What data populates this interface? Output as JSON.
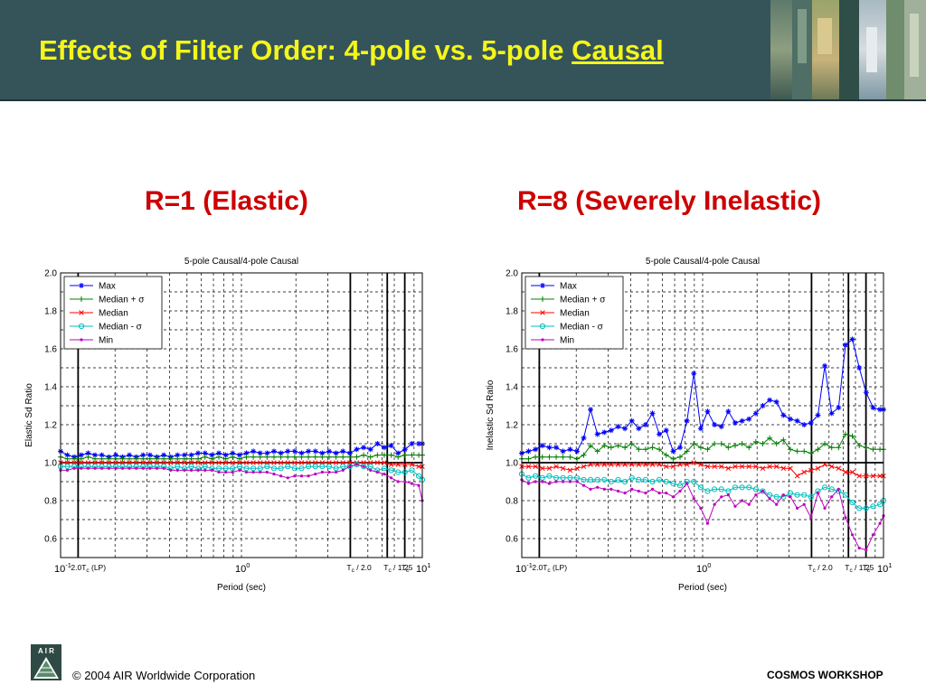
{
  "header": {
    "title_main": "Effects of Filter Order: 4-pole vs. 5-pole ",
    "title_emph": "Causal"
  },
  "panels": {
    "left_heading": "R=1 (Elastic)",
    "right_heading": "R=8 (Severely Inelastic)"
  },
  "footer": {
    "logo_letters": "A I R",
    "copyright": "© 2004 AIR Worldwide Corporation",
    "workshop": "COSMOS WORKSHOP"
  },
  "colors": {
    "header_bg": "#34545a",
    "title": "#f5f51a",
    "heading": "#cc0000",
    "max": "#0000ff",
    "median_plus": "#008000",
    "median": "#ff0000",
    "median_minus": "#00bfbf",
    "min": "#bf00bf"
  },
  "chart_data": [
    {
      "type": "line",
      "title": "5-pole Causal/4-pole Causal",
      "xlabel": "Period (sec)",
      "ylabel": "Elastic Sd Ratio",
      "xscale": "log",
      "xlim": [
        0.1,
        10
      ],
      "ylim": [
        0.5,
        2.0
      ],
      "ytick_labels": [
        "0.6",
        "0.8",
        "1.0",
        "1.2",
        "1.4",
        "1.6",
        "1.8",
        "2.0"
      ],
      "ytick_values": [
        0.6,
        0.8,
        1.0,
        1.2,
        1.4,
        1.6,
        1.8,
        2.0
      ],
      "xtick_labels": [
        {
          "base": "10",
          "exp": "-1",
          "x": 0.1
        },
        {
          "base": "10",
          "exp": "0",
          "x": 1
        },
        {
          "base": "10",
          "exp": "1",
          "x": 10
        }
      ],
      "reference_line": 1.0,
      "vlines": [
        {
          "x": 0.125,
          "label": "2.0T",
          "sub": "c",
          "after": " (LP)"
        },
        {
          "x": 4.0,
          "label": "T",
          "sub": "c",
          "after": " / 2.0"
        },
        {
          "x": 6.4,
          "label": "T",
          "sub": "c",
          "after": " / 1.25"
        },
        {
          "x": 8.0,
          "label": "T",
          "sub": "c",
          "after": ""
        }
      ],
      "legend_position": "top-left",
      "legend_entries": [
        {
          "name": "Max",
          "marker": "star"
        },
        {
          "name": "Median + σ",
          "marker": "plus"
        },
        {
          "name": "Median",
          "marker": "x"
        },
        {
          "name": "Median - σ",
          "marker": "circle"
        },
        {
          "name": "Min",
          "marker": "dot"
        }
      ],
      "x": [
        0.1,
        0.109,
        0.119,
        0.13,
        0.142,
        0.155,
        0.169,
        0.185,
        0.202,
        0.22,
        0.24,
        0.262,
        0.286,
        0.312,
        0.341,
        0.372,
        0.406,
        0.443,
        0.484,
        0.528,
        0.576,
        0.629,
        0.687,
        0.75,
        0.819,
        0.894,
        0.976,
        1.065,
        1.163,
        1.27,
        1.386,
        1.513,
        1.652,
        1.804,
        1.969,
        2.15,
        2.347,
        2.562,
        2.797,
        3.054,
        3.334,
        3.64,
        3.974,
        4.338,
        4.736,
        5.171,
        5.645,
        6.163,
        6.728,
        7.345,
        8.019,
        8.755,
        9.558,
        10.0
      ],
      "series": [
        {
          "name": "Max",
          "color": "#0000ff",
          "marker": "star",
          "values": [
            1.06,
            1.04,
            1.03,
            1.04,
            1.05,
            1.04,
            1.04,
            1.03,
            1.04,
            1.03,
            1.04,
            1.03,
            1.04,
            1.04,
            1.03,
            1.04,
            1.03,
            1.04,
            1.04,
            1.04,
            1.05,
            1.05,
            1.04,
            1.05,
            1.04,
            1.05,
            1.04,
            1.05,
            1.06,
            1.05,
            1.05,
            1.06,
            1.05,
            1.06,
            1.06,
            1.05,
            1.06,
            1.06,
            1.05,
            1.06,
            1.05,
            1.06,
            1.05,
            1.07,
            1.08,
            1.07,
            1.1,
            1.08,
            1.09,
            1.05,
            1.07,
            1.1,
            1.1,
            1.1
          ]
        },
        {
          "name": "Median + σ",
          "color": "#008000",
          "marker": "plus",
          "values": [
            1.03,
            1.02,
            1.02,
            1.02,
            1.03,
            1.02,
            1.02,
            1.02,
            1.02,
            1.02,
            1.02,
            1.02,
            1.02,
            1.02,
            1.02,
            1.02,
            1.02,
            1.02,
            1.02,
            1.02,
            1.02,
            1.03,
            1.02,
            1.03,
            1.02,
            1.03,
            1.02,
            1.03,
            1.03,
            1.03,
            1.03,
            1.03,
            1.03,
            1.03,
            1.03,
            1.03,
            1.03,
            1.03,
            1.03,
            1.03,
            1.03,
            1.03,
            1.03,
            1.03,
            1.04,
            1.03,
            1.04,
            1.04,
            1.04,
            1.03,
            1.04,
            1.04,
            1.04,
            1.04
          ]
        },
        {
          "name": "Median",
          "color": "#ff0000",
          "marker": "x",
          "values": [
            1.0,
            1.0,
            1.0,
            1.0,
            1.0,
            1.0,
            1.0,
            1.0,
            1.0,
            1.0,
            1.0,
            1.0,
            1.0,
            1.0,
            1.0,
            1.0,
            1.0,
            1.0,
            1.0,
            1.0,
            1.0,
            1.0,
            1.0,
            1.0,
            1.0,
            1.0,
            1.0,
            1.0,
            1.0,
            1.0,
            1.0,
            1.0,
            1.0,
            1.0,
            1.0,
            1.0,
            1.0,
            1.0,
            1.0,
            1.0,
            1.0,
            1.0,
            1.0,
            1.0,
            1.0,
            1.0,
            1.0,
            1.0,
            0.99,
            0.99,
            0.99,
            0.99,
            0.98,
            0.98
          ]
        },
        {
          "name": "Median - σ",
          "color": "#00bfbf",
          "marker": "circle",
          "values": [
            0.98,
            0.98,
            0.98,
            0.98,
            0.98,
            0.98,
            0.98,
            0.98,
            0.98,
            0.98,
            0.98,
            0.98,
            0.98,
            0.98,
            0.98,
            0.98,
            0.97,
            0.98,
            0.97,
            0.98,
            0.97,
            0.98,
            0.97,
            0.97,
            0.97,
            0.97,
            0.98,
            0.97,
            0.97,
            0.97,
            0.98,
            0.97,
            0.97,
            0.98,
            0.97,
            0.97,
            0.98,
            0.98,
            0.98,
            0.98,
            0.97,
            0.98,
            0.98,
            0.99,
            0.98,
            0.98,
            0.96,
            0.97,
            0.96,
            0.95,
            0.95,
            0.96,
            0.93,
            0.91
          ]
        },
        {
          "name": "Min",
          "color": "#bf00bf",
          "marker": "dot",
          "values": [
            0.96,
            0.96,
            0.97,
            0.97,
            0.97,
            0.97,
            0.97,
            0.97,
            0.97,
            0.97,
            0.97,
            0.97,
            0.97,
            0.97,
            0.97,
            0.97,
            0.96,
            0.96,
            0.96,
            0.96,
            0.96,
            0.96,
            0.96,
            0.95,
            0.95,
            0.95,
            0.96,
            0.95,
            0.95,
            0.95,
            0.95,
            0.94,
            0.93,
            0.92,
            0.93,
            0.93,
            0.93,
            0.94,
            0.95,
            0.95,
            0.95,
            0.96,
            0.98,
            0.99,
            0.98,
            0.96,
            0.95,
            0.94,
            0.92,
            0.9,
            0.9,
            0.89,
            0.88,
            0.8
          ]
        }
      ]
    },
    {
      "type": "line",
      "title": "5-pole Causal/4-pole Causal",
      "xlabel": "Period (sec)",
      "ylabel": "Inelastic Sd Ratio",
      "xscale": "log",
      "xlim": [
        0.1,
        10
      ],
      "ylim": [
        0.5,
        2.0
      ],
      "ytick_labels": [
        "0.6",
        "0.8",
        "1.0",
        "1.2",
        "1.4",
        "1.6",
        "1.8",
        "2.0"
      ],
      "ytick_values": [
        0.6,
        0.8,
        1.0,
        1.2,
        1.4,
        1.6,
        1.8,
        2.0
      ],
      "xtick_labels": [
        {
          "base": "10",
          "exp": "-1",
          "x": 0.1
        },
        {
          "base": "10",
          "exp": "0",
          "x": 1
        },
        {
          "base": "10",
          "exp": "1",
          "x": 10
        }
      ],
      "reference_line": 1.0,
      "vlines": [
        {
          "x": 0.125,
          "label": "2.0T",
          "sub": "c",
          "after": " (LP)"
        },
        {
          "x": 4.0,
          "label": "T",
          "sub": "c",
          "after": " / 2.0"
        },
        {
          "x": 6.4,
          "label": "T",
          "sub": "c",
          "after": " / 1.25"
        },
        {
          "x": 8.0,
          "label": "T",
          "sub": "c",
          "after": ""
        }
      ],
      "legend_position": "top-left",
      "legend_entries": [
        {
          "name": "Max",
          "marker": "star"
        },
        {
          "name": "Median + σ",
          "marker": "plus"
        },
        {
          "name": "Median",
          "marker": "x"
        },
        {
          "name": "Median - σ",
          "marker": "circle"
        },
        {
          "name": "Min",
          "marker": "dot"
        }
      ],
      "x": [
        0.1,
        0.109,
        0.119,
        0.13,
        0.142,
        0.155,
        0.169,
        0.185,
        0.202,
        0.22,
        0.24,
        0.262,
        0.286,
        0.312,
        0.341,
        0.372,
        0.406,
        0.443,
        0.484,
        0.528,
        0.576,
        0.629,
        0.687,
        0.75,
        0.819,
        0.894,
        0.976,
        1.065,
        1.163,
        1.27,
        1.386,
        1.513,
        1.652,
        1.804,
        1.969,
        2.15,
        2.347,
        2.562,
        2.797,
        3.054,
        3.334,
        3.64,
        3.974,
        4.338,
        4.736,
        5.171,
        5.645,
        6.163,
        6.728,
        7.345,
        8.019,
        8.755,
        9.558,
        10.0
      ],
      "series": [
        {
          "name": "Max",
          "color": "#0000ff",
          "marker": "star",
          "values": [
            1.05,
            1.06,
            1.07,
            1.09,
            1.08,
            1.08,
            1.06,
            1.07,
            1.06,
            1.13,
            1.28,
            1.15,
            1.16,
            1.17,
            1.19,
            1.18,
            1.22,
            1.18,
            1.2,
            1.26,
            1.15,
            1.17,
            1.06,
            1.08,
            1.22,
            1.47,
            1.18,
            1.27,
            1.2,
            1.19,
            1.27,
            1.21,
            1.22,
            1.23,
            1.26,
            1.3,
            1.33,
            1.32,
            1.25,
            1.23,
            1.22,
            1.2,
            1.21,
            1.25,
            1.51,
            1.26,
            1.29,
            1.62,
            1.65,
            1.5,
            1.37,
            1.29,
            1.28,
            1.28
          ]
        },
        {
          "name": "Median + σ",
          "color": "#008000",
          "marker": "plus",
          "values": [
            1.02,
            1.02,
            1.03,
            1.03,
            1.03,
            1.03,
            1.03,
            1.03,
            1.02,
            1.04,
            1.09,
            1.06,
            1.09,
            1.08,
            1.09,
            1.08,
            1.1,
            1.07,
            1.07,
            1.08,
            1.07,
            1.04,
            1.02,
            1.03,
            1.06,
            1.1,
            1.08,
            1.07,
            1.1,
            1.1,
            1.08,
            1.09,
            1.1,
            1.08,
            1.11,
            1.1,
            1.13,
            1.1,
            1.12,
            1.07,
            1.06,
            1.06,
            1.05,
            1.07,
            1.1,
            1.08,
            1.08,
            1.15,
            1.14,
            1.09,
            1.08,
            1.07,
            1.07,
            1.07
          ]
        },
        {
          "name": "Median",
          "color": "#ff0000",
          "marker": "x",
          "values": [
            0.98,
            0.98,
            0.98,
            0.97,
            0.97,
            0.98,
            0.97,
            0.96,
            0.97,
            0.98,
            0.99,
            0.99,
            0.99,
            0.99,
            0.99,
            0.99,
            0.99,
            0.99,
            0.99,
            0.99,
            0.99,
            0.98,
            0.98,
            0.99,
            0.99,
            1.0,
            0.99,
            0.98,
            0.98,
            0.98,
            0.97,
            0.98,
            0.98,
            0.98,
            0.98,
            0.97,
            0.98,
            0.98,
            0.97,
            0.97,
            0.93,
            0.95,
            0.96,
            0.97,
            0.99,
            0.98,
            0.97,
            0.95,
            0.95,
            0.93,
            0.93,
            0.93,
            0.93,
            0.93
          ]
        },
        {
          "name": "Median - σ",
          "color": "#00bfbf",
          "marker": "circle",
          "values": [
            0.94,
            0.92,
            0.93,
            0.92,
            0.93,
            0.92,
            0.92,
            0.92,
            0.92,
            0.91,
            0.91,
            0.91,
            0.91,
            0.9,
            0.91,
            0.9,
            0.92,
            0.91,
            0.91,
            0.9,
            0.91,
            0.9,
            0.89,
            0.88,
            0.9,
            0.9,
            0.87,
            0.85,
            0.86,
            0.86,
            0.85,
            0.87,
            0.87,
            0.87,
            0.86,
            0.85,
            0.83,
            0.82,
            0.82,
            0.84,
            0.83,
            0.83,
            0.82,
            0.85,
            0.87,
            0.86,
            0.85,
            0.83,
            0.79,
            0.76,
            0.76,
            0.77,
            0.78,
            0.8
          ]
        },
        {
          "name": "Min",
          "color": "#bf00bf",
          "marker": "dot",
          "values": [
            0.91,
            0.89,
            0.9,
            0.9,
            0.89,
            0.9,
            0.9,
            0.9,
            0.9,
            0.88,
            0.86,
            0.87,
            0.86,
            0.86,
            0.85,
            0.84,
            0.86,
            0.85,
            0.84,
            0.86,
            0.84,
            0.84,
            0.82,
            0.85,
            0.89,
            0.81,
            0.76,
            0.68,
            0.78,
            0.82,
            0.83,
            0.77,
            0.8,
            0.78,
            0.83,
            0.85,
            0.81,
            0.78,
            0.83,
            0.82,
            0.76,
            0.78,
            0.71,
            0.84,
            0.76,
            0.82,
            0.86,
            0.71,
            0.62,
            0.55,
            0.54,
            0.62,
            0.68,
            0.72
          ]
        }
      ]
    }
  ]
}
